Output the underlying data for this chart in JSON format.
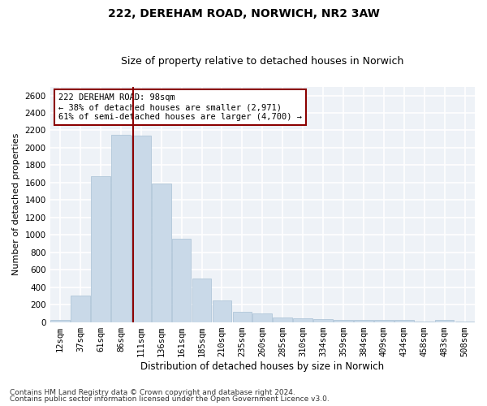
{
  "title": "222, DEREHAM ROAD, NORWICH, NR2 3AW",
  "subtitle": "Size of property relative to detached houses in Norwich",
  "xlabel": "Distribution of detached houses by size in Norwich",
  "ylabel": "Number of detached properties",
  "categories": [
    "12sqm",
    "37sqm",
    "61sqm",
    "86sqm",
    "111sqm",
    "136sqm",
    "161sqm",
    "185sqm",
    "210sqm",
    "235sqm",
    "260sqm",
    "285sqm",
    "310sqm",
    "334sqm",
    "359sqm",
    "384sqm",
    "409sqm",
    "434sqm",
    "458sqm",
    "483sqm",
    "508sqm"
  ],
  "values": [
    25,
    300,
    1670,
    2150,
    2140,
    1590,
    960,
    500,
    250,
    120,
    100,
    50,
    45,
    35,
    20,
    20,
    20,
    20,
    5,
    20,
    5
  ],
  "bar_color": "#c9d9e8",
  "bar_edgecolor": "#a8c0d4",
  "vline_x_index": 3.62,
  "vline_color": "#8b0000",
  "annotation_text": "222 DEREHAM ROAD: 98sqm\n← 38% of detached houses are smaller (2,971)\n61% of semi-detached houses are larger (4,700) →",
  "annotation_box_color": "#ffffff",
  "annotation_border_color": "#8b0000",
  "ylim": [
    0,
    2700
  ],
  "yticks": [
    0,
    200,
    400,
    600,
    800,
    1000,
    1200,
    1400,
    1600,
    1800,
    2000,
    2200,
    2400,
    2600
  ],
  "bg_color": "#eef2f7",
  "grid_color": "#ffffff",
  "footer_line1": "Contains HM Land Registry data © Crown copyright and database right 2024.",
  "footer_line2": "Contains public sector information licensed under the Open Government Licence v3.0.",
  "title_fontsize": 10,
  "subtitle_fontsize": 9,
  "xlabel_fontsize": 8.5,
  "ylabel_fontsize": 8,
  "tick_fontsize": 7.5,
  "annotation_fontsize": 7.5,
  "footer_fontsize": 6.5
}
